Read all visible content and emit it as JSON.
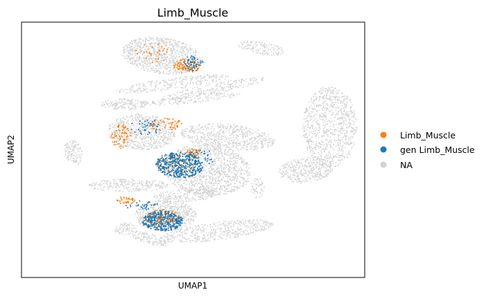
{
  "chart_data": {
    "type": "scatter",
    "title": "Limb_Muscle",
    "xlabel": "UMAP1",
    "ylabel": "UMAP2",
    "grid": false,
    "axis_ticks": false,
    "legend_position": "right",
    "xlim": [
      0,
      100
    ],
    "ylim": [
      0,
      100
    ],
    "series": [
      {
        "name": "NA",
        "color": "#d3d3d3"
      },
      {
        "name": "Limb_Muscle",
        "color": "#ff7f0e"
      },
      {
        "name": "gen Limb_Muscle",
        "color": "#1f77b4"
      }
    ],
    "legend": [
      "Limb_Muscle",
      "gen Limb_Muscle",
      "NA"
    ],
    "na_clusters": [
      {
        "cx": 41,
        "cy": 87,
        "rx": 12,
        "ry": 7,
        "rot": -12,
        "n": 900
      },
      {
        "cx": 70,
        "cy": 90,
        "rx": 7,
        "ry": 2.5,
        "rot": -12,
        "n": 140
      },
      {
        "cx": 44,
        "cy": 76,
        "rx": 17,
        "ry": 2.2,
        "rot": 10,
        "n": 260
      },
      {
        "cx": 56,
        "cy": 74,
        "rx": 16,
        "ry": 2,
        "rot": 15,
        "n": 220
      },
      {
        "cx": 30,
        "cy": 68,
        "rx": 7,
        "ry": 2.2,
        "rot": 0,
        "n": 160
      },
      {
        "cx": 50,
        "cy": 70,
        "rx": 14,
        "ry": 1.6,
        "rot": 8,
        "n": 160
      },
      {
        "cx": 90,
        "cy": 59,
        "rx": 8,
        "ry": 16,
        "rot": 0,
        "n": 900
      },
      {
        "cx": 83,
        "cy": 42,
        "rx": 8,
        "ry": 5,
        "rot": 10,
        "n": 360
      },
      {
        "cx": 35,
        "cy": 57,
        "rx": 10,
        "ry": 7,
        "rot": -5,
        "n": 700
      },
      {
        "cx": 60,
        "cy": 55,
        "rx": 14,
        "ry": 5,
        "rot": -8,
        "n": 600
      },
      {
        "cx": 54,
        "cy": 42,
        "rx": 13,
        "ry": 10,
        "rot": -12,
        "n": 1200
      },
      {
        "cx": 31,
        "cy": 36,
        "rx": 12,
        "ry": 2.5,
        "rot": 0,
        "n": 250
      },
      {
        "cx": 48,
        "cy": 32,
        "rx": 10,
        "ry": 2.5,
        "rot": 5,
        "n": 220
      },
      {
        "cx": 42,
        "cy": 24,
        "rx": 9,
        "ry": 6,
        "rot": 0,
        "n": 650
      },
      {
        "cx": 57,
        "cy": 18,
        "rx": 17,
        "ry": 3.5,
        "rot": 10,
        "n": 450
      },
      {
        "cx": 37,
        "cy": 15,
        "rx": 6,
        "ry": 2,
        "rot": -25,
        "n": 120
      },
      {
        "cx": 30,
        "cy": 19,
        "rx": 3,
        "ry": 2.5,
        "rot": 0,
        "n": 70
      },
      {
        "cx": 15,
        "cy": 49,
        "rx": 2.5,
        "ry": 5,
        "rot": 10,
        "n": 120
      },
      {
        "cx": 69,
        "cy": 35,
        "rx": 2,
        "ry": 4,
        "rot": 0,
        "n": 60
      }
    ],
    "gen_clusters": [
      {
        "cx": 46,
        "cy": 44,
        "rx": 7,
        "ry": 5,
        "rot": -5,
        "n": 420
      },
      {
        "cx": 41,
        "cy": 22,
        "rx": 6,
        "ry": 4,
        "rot": 0,
        "n": 340
      },
      {
        "cx": 50,
        "cy": 84,
        "rx": 3,
        "ry": 3,
        "rot": 0,
        "n": 60
      },
      {
        "cx": 36,
        "cy": 59,
        "rx": 5,
        "ry": 3,
        "rot": 0,
        "n": 40
      },
      {
        "cx": 52,
        "cy": 47,
        "rx": 5,
        "ry": 3,
        "rot": 0,
        "n": 40
      },
      {
        "cx": 35,
        "cy": 28,
        "rx": 5,
        "ry": 2,
        "rot": 0,
        "n": 30
      }
    ],
    "lm_clusters": [
      {
        "cx": 48,
        "cy": 83,
        "rx": 4,
        "ry": 3,
        "rot": 0,
        "n": 90
      },
      {
        "cx": 38,
        "cy": 88,
        "rx": 5,
        "ry": 4,
        "rot": 0,
        "n": 30
      },
      {
        "cx": 29,
        "cy": 55,
        "rx": 3,
        "ry": 5,
        "rot": 0,
        "n": 70
      },
      {
        "cx": 42,
        "cy": 60,
        "rx": 5,
        "ry": 2.5,
        "rot": 0,
        "n": 50
      },
      {
        "cx": 50,
        "cy": 49,
        "rx": 2.5,
        "ry": 1.5,
        "rot": 0,
        "n": 30
      },
      {
        "cx": 45,
        "cy": 44,
        "rx": 6,
        "ry": 4,
        "rot": 0,
        "n": 60
      },
      {
        "cx": 41,
        "cy": 23,
        "rx": 5,
        "ry": 3.5,
        "rot": 0,
        "n": 130
      },
      {
        "cx": 30,
        "cy": 30,
        "rx": 3,
        "ry": 1.5,
        "rot": 0,
        "n": 35
      }
    ]
  }
}
